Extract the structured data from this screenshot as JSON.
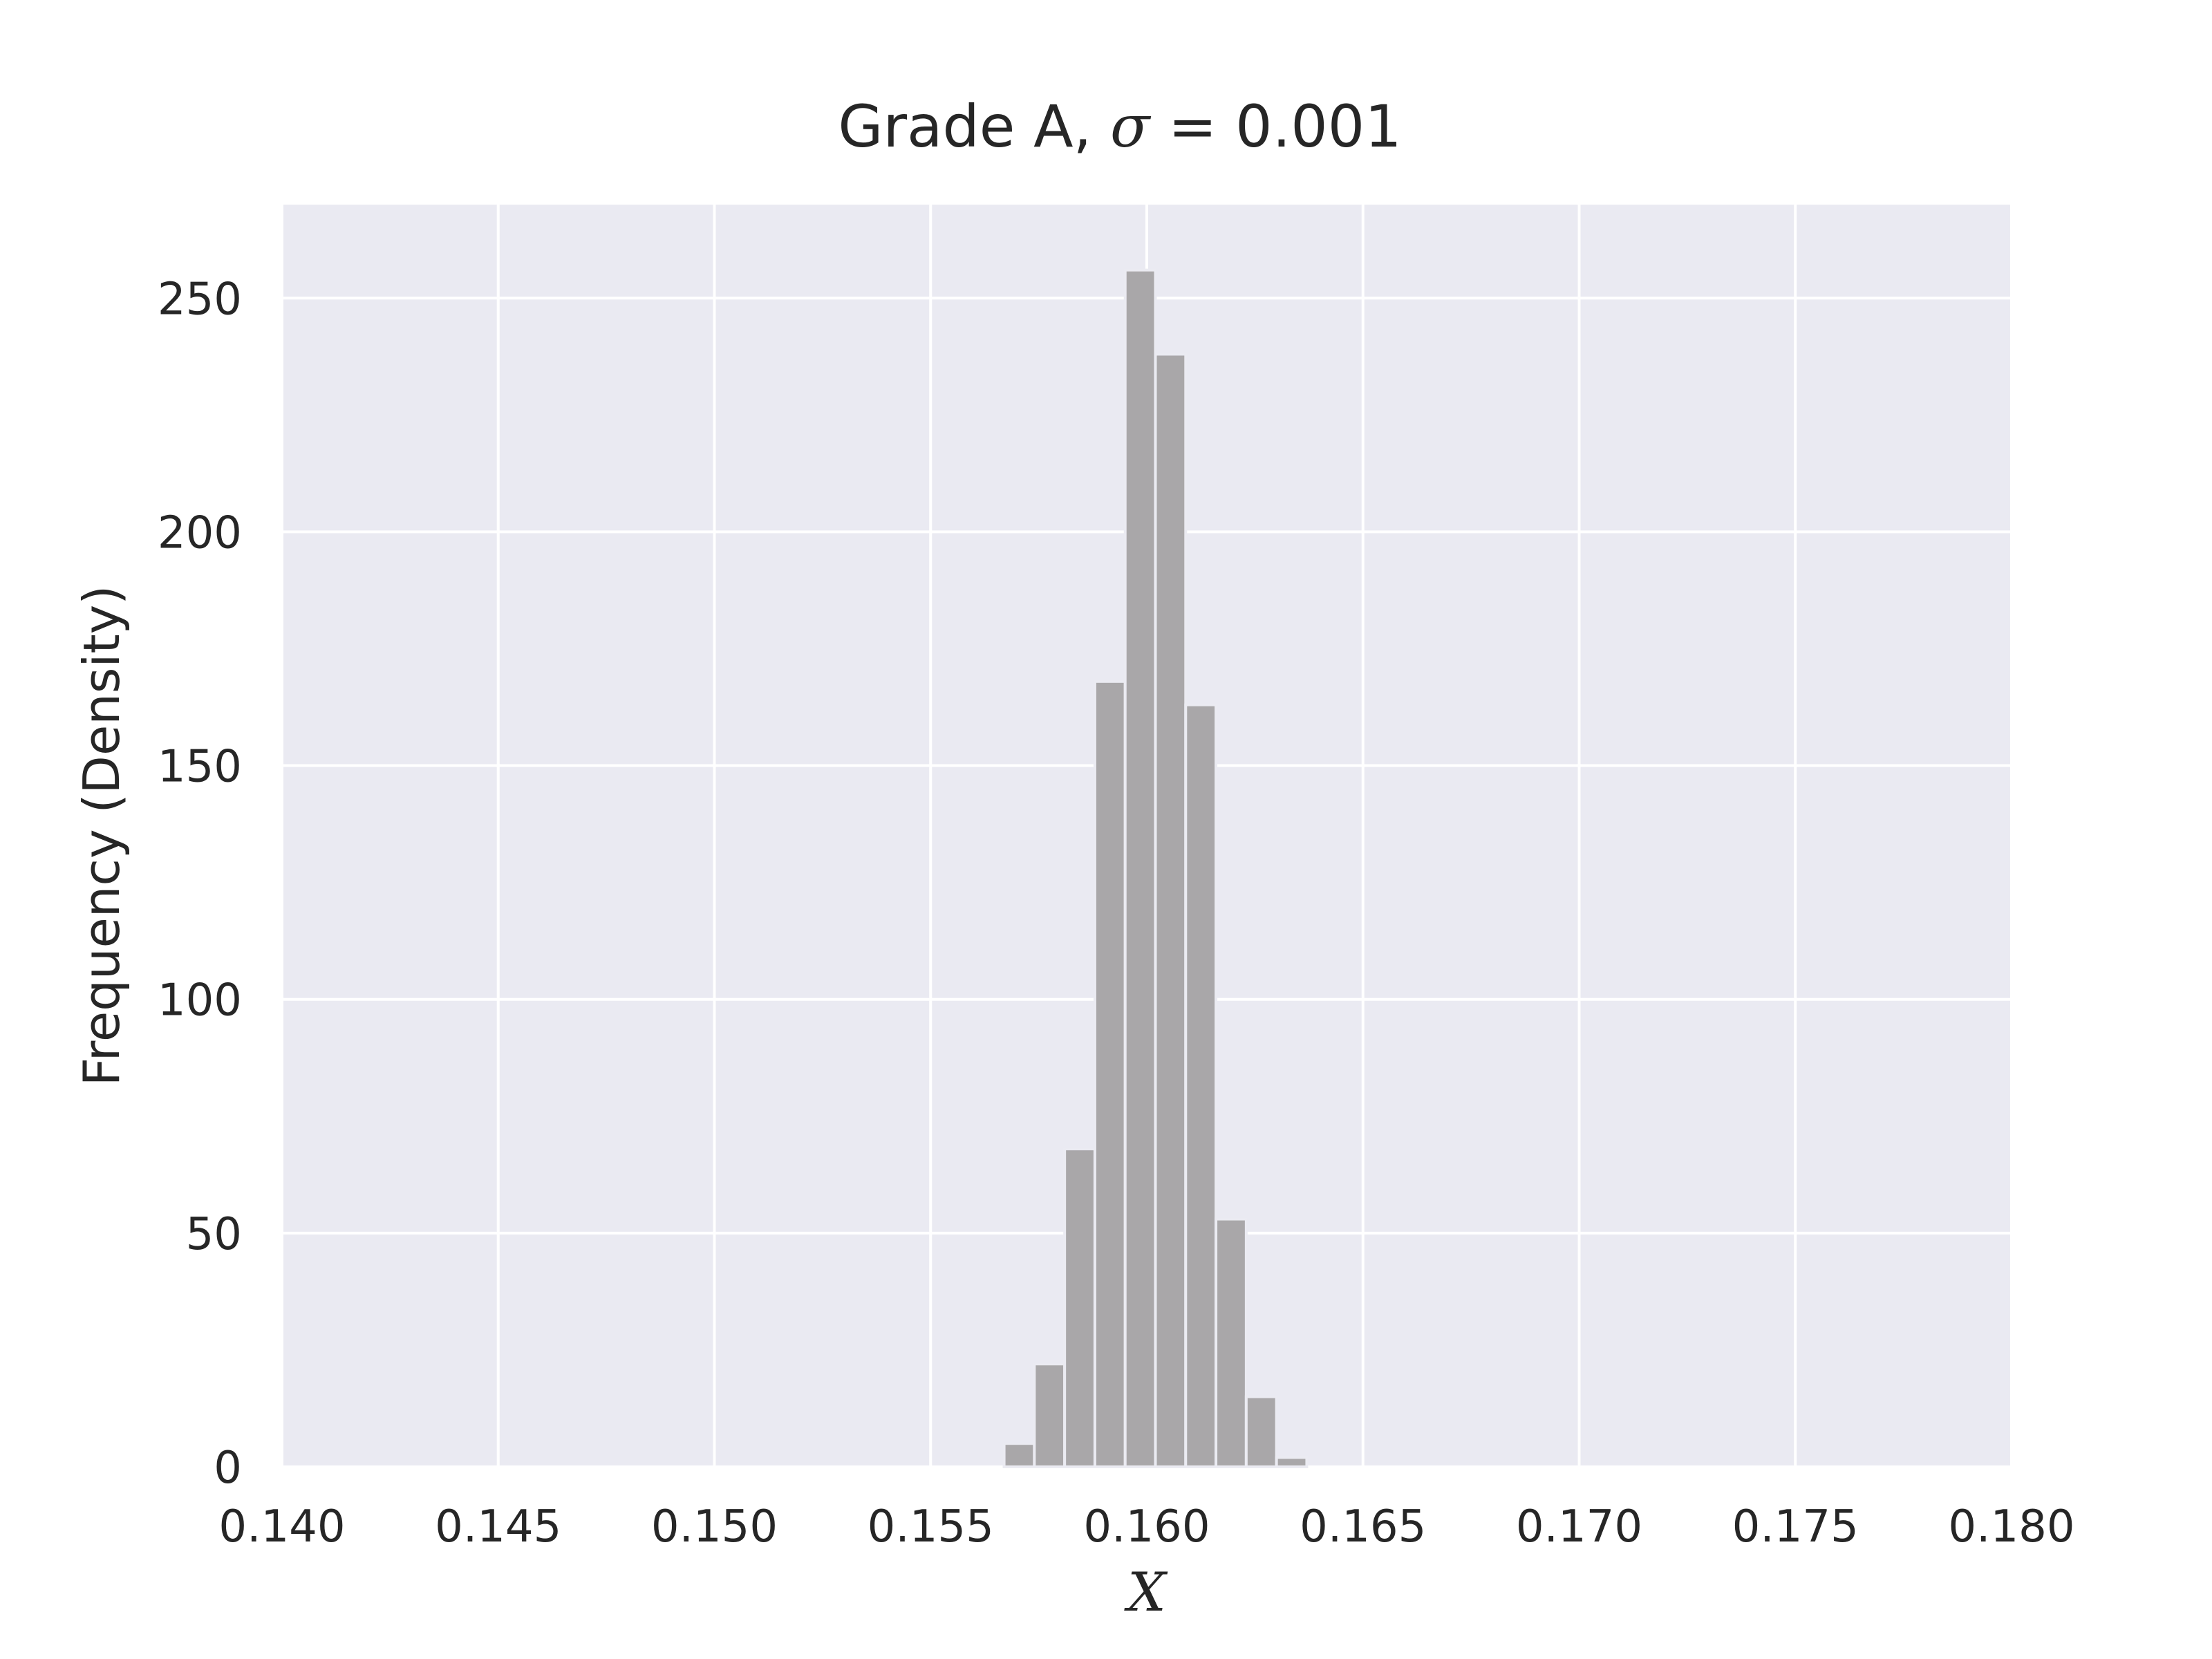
{
  "chart_data": {
    "type": "bar",
    "title_prefix": "Grade A, ",
    "title_symbol": "σ",
    "title_suffix": " = 0.001",
    "xlabel": "X",
    "ylabel": "Frequency (Density)",
    "xlim": [
      0.14,
      0.18
    ],
    "ylim": [
      0,
      270
    ],
    "xticks": [
      "0.140",
      "0.145",
      "0.150",
      "0.155",
      "0.160",
      "0.165",
      "0.170",
      "0.175",
      "0.180"
    ],
    "yticks": [
      "0",
      "50",
      "100",
      "150",
      "200",
      "250"
    ],
    "grid": true,
    "background_color": "#EAEAF2",
    "bar_color": "#A9A7A9",
    "bins": [
      {
        "x0": 0.1567,
        "x1": 0.1574,
        "value": 5
      },
      {
        "x0": 0.1574,
        "x1": 0.1581,
        "value": 22
      },
      {
        "x0": 0.1581,
        "x1": 0.1588,
        "value": 68
      },
      {
        "x0": 0.1588,
        "x1": 0.1595,
        "value": 168
      },
      {
        "x0": 0.1595,
        "x1": 0.1602,
        "value": 256
      },
      {
        "x0": 0.1602,
        "x1": 0.1609,
        "value": 238
      },
      {
        "x0": 0.1609,
        "x1": 0.1616,
        "value": 163
      },
      {
        "x0": 0.1616,
        "x1": 0.1623,
        "value": 53
      },
      {
        "x0": 0.1623,
        "x1": 0.163,
        "value": 15
      },
      {
        "x0": 0.163,
        "x1": 0.1637,
        "value": 2
      }
    ]
  }
}
